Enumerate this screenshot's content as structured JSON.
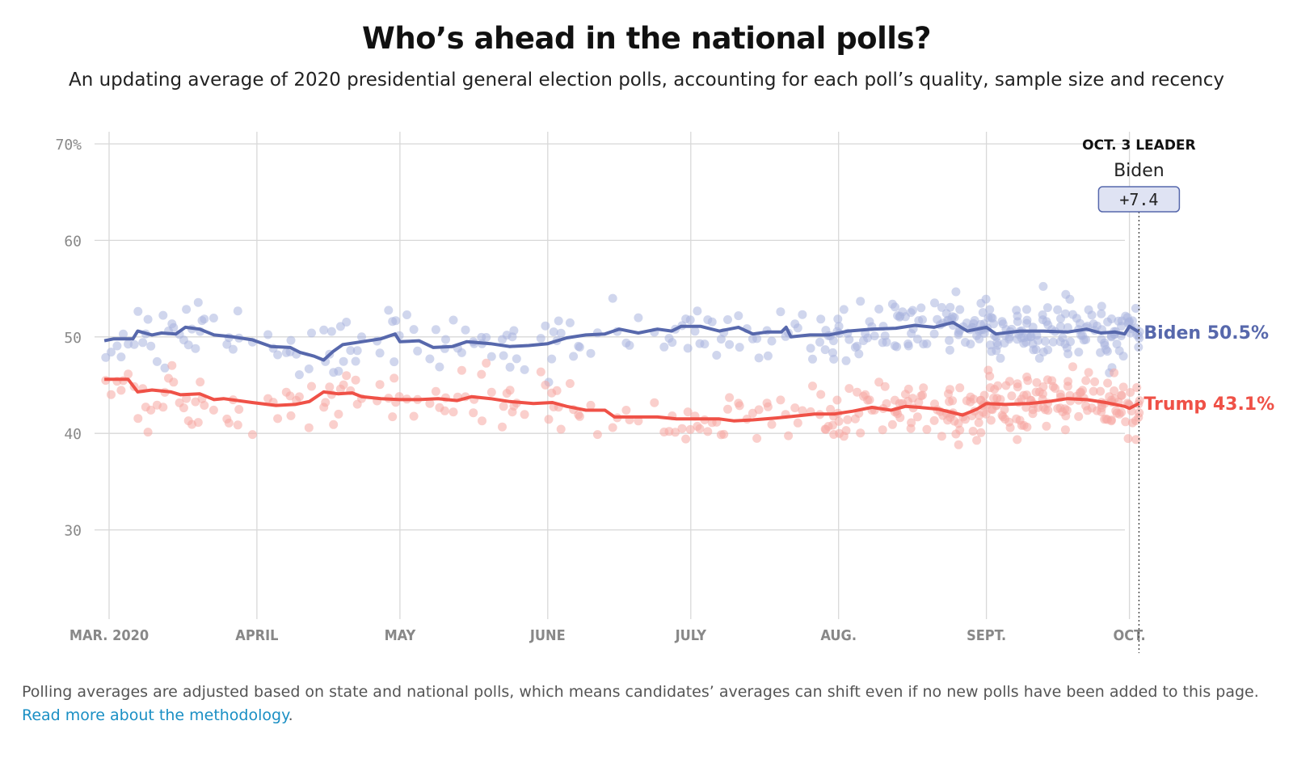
{
  "header": {
    "title": "Who’s ahead in the national polls?",
    "subtitle": "An updating average of 2020 presidential general election polls, accounting for each poll’s quality, sample size and recency"
  },
  "footer": {
    "text": "Polling averages are adjusted based on state and national polls, which means candidates’ averages can shift even if no new polls have been added to this page. ",
    "link_text": "Read more about the methodology",
    "end": "."
  },
  "colors": {
    "biden": "#5768ac",
    "trump": "#ef5147",
    "biden_dots": "#aab4de",
    "trump_dots": "#f6a8a2",
    "grid": "#d8d8d8",
    "tick_text": "#888888"
  },
  "chart_data": {
    "type": "line",
    "x_axis": {
      "type": "date",
      "domain": [
        "2020-02-29",
        "2020-10-03"
      ],
      "ticks": [
        {
          "date": "2020-03-01",
          "label": "MAR. 2020"
        },
        {
          "date": "2020-04-01",
          "label": "APRIL"
        },
        {
          "date": "2020-05-01",
          "label": "MAY"
        },
        {
          "date": "2020-06-01",
          "label": "JUNE"
        },
        {
          "date": "2020-07-01",
          "label": "JULY"
        },
        {
          "date": "2020-08-01",
          "label": "AUG."
        },
        {
          "date": "2020-09-01",
          "label": "SEPT."
        },
        {
          "date": "2020-10-01",
          "label": "OCT."
        }
      ]
    },
    "y_axis": {
      "domain": [
        20,
        70
      ],
      "ticks": [
        {
          "value": 70,
          "label": "70%"
        },
        {
          "value": 60,
          "label": "60"
        },
        {
          "value": 50,
          "label": "50"
        },
        {
          "value": 40,
          "label": "40"
        },
        {
          "value": 30,
          "label": "30"
        }
      ]
    },
    "grid": true,
    "series": [
      {
        "name": "Biden",
        "end_label": "Biden 50.5%",
        "points": [
          [
            "2020-02-29",
            49.6
          ],
          [
            "2020-03-02",
            49.8
          ],
          [
            "2020-03-06",
            49.8
          ],
          [
            "2020-03-07",
            50.6
          ],
          [
            "2020-03-10",
            50.2
          ],
          [
            "2020-03-12",
            50.4
          ],
          [
            "2020-03-15",
            50.3
          ],
          [
            "2020-03-17",
            51.0
          ],
          [
            "2020-03-20",
            50.8
          ],
          [
            "2020-03-23",
            50.2
          ],
          [
            "2020-03-27",
            50.0
          ],
          [
            "2020-03-31",
            49.7
          ],
          [
            "2020-04-04",
            49.0
          ],
          [
            "2020-04-08",
            48.9
          ],
          [
            "2020-04-10",
            48.4
          ],
          [
            "2020-04-13",
            48.0
          ],
          [
            "2020-04-15",
            47.6
          ],
          [
            "2020-04-17",
            48.5
          ],
          [
            "2020-04-19",
            49.2
          ],
          [
            "2020-04-23",
            49.5
          ],
          [
            "2020-04-27",
            49.8
          ],
          [
            "2020-04-30",
            50.3
          ],
          [
            "2020-05-01",
            49.5
          ],
          [
            "2020-05-05",
            49.6
          ],
          [
            "2020-05-08",
            48.9
          ],
          [
            "2020-05-12",
            49.0
          ],
          [
            "2020-05-15",
            49.5
          ],
          [
            "2020-05-20",
            49.3
          ],
          [
            "2020-05-24",
            49.0
          ],
          [
            "2020-05-28",
            49.1
          ],
          [
            "2020-06-01",
            49.3
          ],
          [
            "2020-06-05",
            49.9
          ],
          [
            "2020-06-09",
            50.2
          ],
          [
            "2020-06-13",
            50.3
          ],
          [
            "2020-06-16",
            50.8
          ],
          [
            "2020-06-20",
            50.4
          ],
          [
            "2020-06-24",
            50.8
          ],
          [
            "2020-06-27",
            50.6
          ],
          [
            "2020-06-29",
            51.1
          ],
          [
            "2020-07-03",
            51.1
          ],
          [
            "2020-07-07",
            50.6
          ],
          [
            "2020-07-11",
            51.0
          ],
          [
            "2020-07-14",
            50.3
          ],
          [
            "2020-07-17",
            50.5
          ],
          [
            "2020-07-20",
            50.5
          ],
          [
            "2020-07-21",
            51.0
          ],
          [
            "2020-07-22",
            50.0
          ],
          [
            "2020-07-26",
            50.2
          ],
          [
            "2020-07-30",
            50.2
          ],
          [
            "2020-08-03",
            50.6
          ],
          [
            "2020-08-08",
            50.8
          ],
          [
            "2020-08-13",
            50.9
          ],
          [
            "2020-08-17",
            51.2
          ],
          [
            "2020-08-21",
            51.0
          ],
          [
            "2020-08-25",
            51.5
          ],
          [
            "2020-08-28",
            50.6
          ],
          [
            "2020-09-01",
            51.0
          ],
          [
            "2020-09-03",
            50.3
          ],
          [
            "2020-09-08",
            50.6
          ],
          [
            "2020-09-13",
            50.6
          ],
          [
            "2020-09-18",
            50.5
          ],
          [
            "2020-09-22",
            50.8
          ],
          [
            "2020-09-25",
            50.4
          ],
          [
            "2020-09-28",
            50.5
          ],
          [
            "2020-09-30",
            50.3
          ],
          [
            "2020-10-01",
            51.1
          ],
          [
            "2020-10-03",
            50.5
          ]
        ]
      },
      {
        "name": "Trump",
        "end_label": "Trump 43.1%",
        "points": [
          [
            "2020-02-29",
            45.6
          ],
          [
            "2020-03-05",
            45.6
          ],
          [
            "2020-03-07",
            44.3
          ],
          [
            "2020-03-10",
            44.5
          ],
          [
            "2020-03-14",
            44.3
          ],
          [
            "2020-03-16",
            44.0
          ],
          [
            "2020-03-20",
            44.1
          ],
          [
            "2020-03-23",
            43.5
          ],
          [
            "2020-03-25",
            43.6
          ],
          [
            "2020-03-31",
            43.2
          ],
          [
            "2020-04-05",
            42.9
          ],
          [
            "2020-04-09",
            43.0
          ],
          [
            "2020-04-12",
            43.3
          ],
          [
            "2020-04-15",
            44.3
          ],
          [
            "2020-04-18",
            44.1
          ],
          [
            "2020-04-21",
            44.2
          ],
          [
            "2020-04-23",
            43.8
          ],
          [
            "2020-04-27",
            43.6
          ],
          [
            "2020-05-01",
            43.5
          ],
          [
            "2020-05-05",
            43.5
          ],
          [
            "2020-05-09",
            43.6
          ],
          [
            "2020-05-13",
            43.4
          ],
          [
            "2020-05-16",
            43.8
          ],
          [
            "2020-05-20",
            43.6
          ],
          [
            "2020-05-24",
            43.3
          ],
          [
            "2020-05-29",
            43.1
          ],
          [
            "2020-06-02",
            43.2
          ],
          [
            "2020-06-05",
            42.8
          ],
          [
            "2020-06-09",
            42.4
          ],
          [
            "2020-06-13",
            42.4
          ],
          [
            "2020-06-15",
            41.7
          ],
          [
            "2020-06-20",
            41.7
          ],
          [
            "2020-06-24",
            41.7
          ],
          [
            "2020-06-28",
            41.5
          ],
          [
            "2020-07-03",
            41.5
          ],
          [
            "2020-07-07",
            41.5
          ],
          [
            "2020-07-10",
            41.3
          ],
          [
            "2020-07-14",
            41.4
          ],
          [
            "2020-07-19",
            41.6
          ],
          [
            "2020-07-23",
            41.8
          ],
          [
            "2020-07-27",
            42.0
          ],
          [
            "2020-07-31",
            42.0
          ],
          [
            "2020-08-04",
            42.3
          ],
          [
            "2020-08-08",
            42.7
          ],
          [
            "2020-08-12",
            42.4
          ],
          [
            "2020-08-15",
            42.8
          ],
          [
            "2020-08-18",
            42.7
          ],
          [
            "2020-08-22",
            42.5
          ],
          [
            "2020-08-27",
            41.9
          ],
          [
            "2020-08-30",
            42.5
          ],
          [
            "2020-09-01",
            43.1
          ],
          [
            "2020-09-05",
            43.0
          ],
          [
            "2020-09-10",
            43.1
          ],
          [
            "2020-09-14",
            43.3
          ],
          [
            "2020-09-18",
            43.6
          ],
          [
            "2020-09-22",
            43.5
          ],
          [
            "2020-09-26",
            43.2
          ],
          [
            "2020-09-30",
            42.8
          ],
          [
            "2020-10-01",
            42.6
          ],
          [
            "2020-10-03",
            43.1
          ]
        ]
      }
    ],
    "leader_callout": {
      "date": "2020-10-03",
      "heading": "OCT. 3 LEADER",
      "name": "Biden",
      "margin": "+7.4"
    }
  }
}
